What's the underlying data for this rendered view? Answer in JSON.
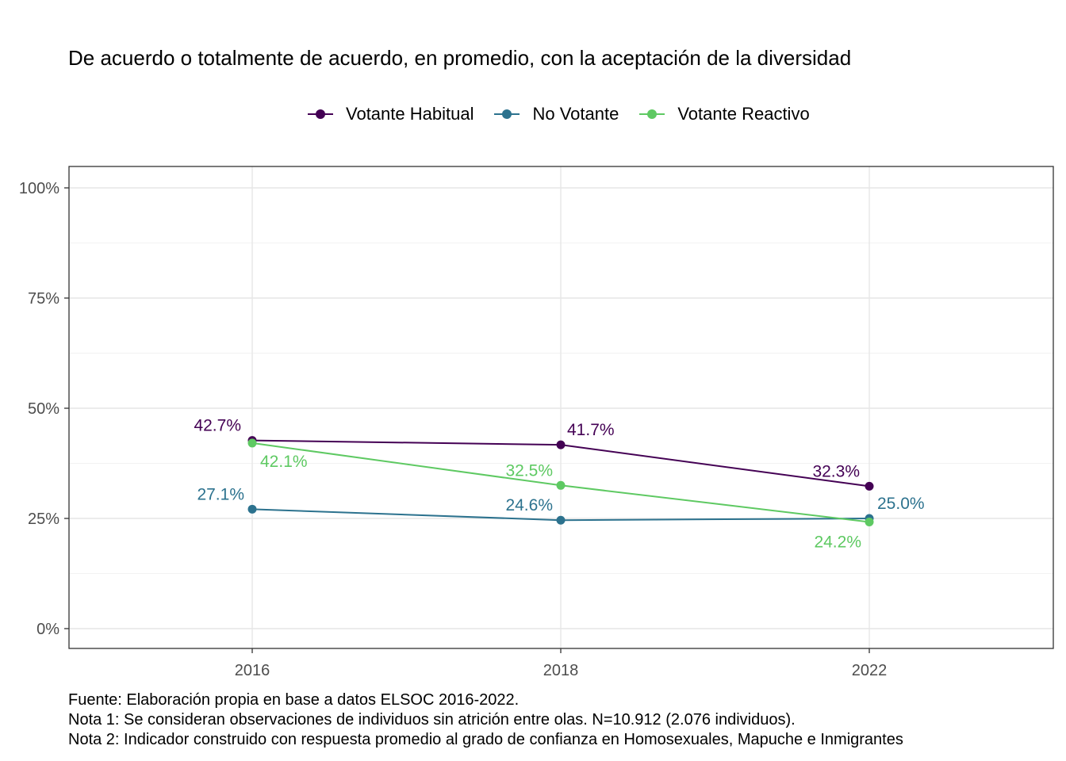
{
  "chart_data": {
    "type": "line",
    "title": "De acuerdo o totalmente de acuerdo, en promedio, con la aceptación de la diversidad",
    "xlabel": "",
    "ylabel": "",
    "categories": [
      "2016",
      "2018",
      "2022"
    ],
    "ylim": [
      0,
      100
    ],
    "yticks": [
      "0%",
      "25%",
      "50%",
      "75%",
      "100%"
    ],
    "ytick_values": [
      0,
      25,
      50,
      75,
      100
    ],
    "grid": true,
    "legend_position": "top",
    "series": [
      {
        "name": "Votante Habitual",
        "color": "#440154",
        "values": [
          42.7,
          41.7,
          32.3
        ],
        "labels": [
          "42.7%",
          "41.7%",
          "32.3%"
        ]
      },
      {
        "name": "No Votante",
        "color": "#2c728e",
        "values": [
          27.1,
          24.6,
          25.0
        ],
        "labels": [
          "27.1%",
          "24.6%",
          "25.0%"
        ]
      },
      {
        "name": "Votante Reactivo",
        "color": "#5ec962",
        "values": [
          42.1,
          32.5,
          24.2
        ],
        "labels": [
          "42.1%",
          "32.5%",
          "24.2%"
        ]
      }
    ],
    "caption": [
      "Fuente: Elaboración propia en base a datos ELSOC 2016-2022.",
      "Nota 1: Se consideran observaciones de individuos sin atrición entre olas. N=10.912 (2.076 individuos).",
      "Nota 2: Indicador construido con respuesta promedio al grado de confianza en Homosexuales, Mapuche e Inmigrantes"
    ]
  }
}
